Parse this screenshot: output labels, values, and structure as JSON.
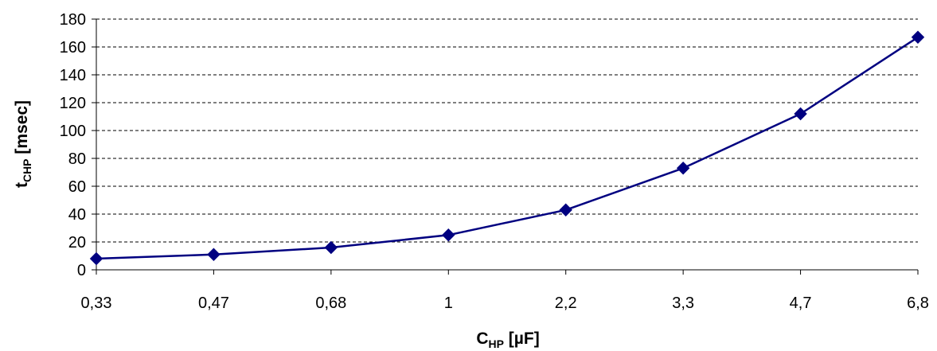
{
  "chart_data": {
    "type": "line",
    "categories": [
      "0,33",
      "0,47",
      "0,68",
      "1",
      "2,2",
      "3,3",
      "4,7",
      "6,8"
    ],
    "series": [
      {
        "values": [
          8,
          11,
          16,
          25,
          43,
          73,
          112,
          167
        ]
      }
    ],
    "ylim": [
      0,
      180
    ],
    "yticks": [
      0,
      20,
      40,
      60,
      80,
      100,
      120,
      140,
      160,
      180
    ],
    "xlabel": {
      "main": "C",
      "sub": "HP",
      "tail": " [µF]"
    },
    "ylabel": {
      "main": "t",
      "sub": "CHP",
      "tail": " [msec]"
    },
    "grid": "horizontal dashed",
    "colors": {
      "series": "#000080",
      "axis": "#000000",
      "grid": "#000000"
    }
  }
}
